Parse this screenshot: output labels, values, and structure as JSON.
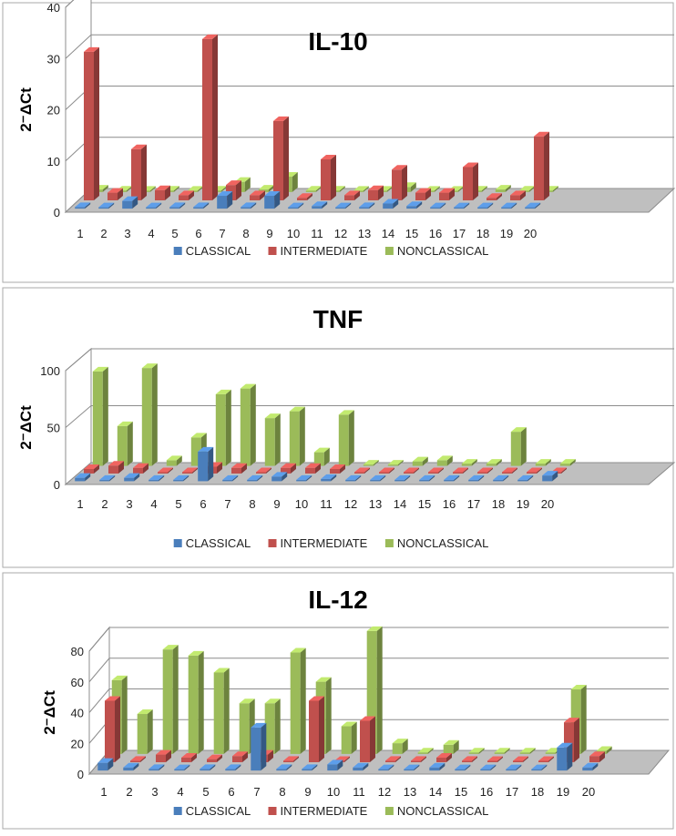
{
  "chart_data": [
    {
      "type": "bar",
      "title": "IL-10",
      "ylabel": "2⁻ΔCt",
      "categories": [
        "1",
        "2",
        "3",
        "4",
        "5",
        "6",
        "7",
        "8",
        "9",
        "10",
        "11",
        "12",
        "13",
        "14",
        "15",
        "16",
        "17",
        "18",
        "19",
        "20"
      ],
      "ylim": [
        0,
        40
      ],
      "yticks": [
        0,
        10,
        20,
        30,
        40
      ],
      "grid": true,
      "legend": "bottom",
      "series": [
        {
          "name": "CLASSICAL",
          "color": "#4A7EBB",
          "values": [
            0.3,
            0.2,
            1.5,
            0.2,
            0.3,
            0.3,
            2.5,
            0.3,
            2.5,
            0.2,
            0.5,
            0.2,
            0.3,
            1.0,
            0.5,
            0.2,
            0.1,
            0.2,
            0.1,
            0.1
          ]
        },
        {
          "name": "INTERMEDIATE",
          "color": "#C0504D",
          "values": [
            29,
            1.5,
            10,
            2,
            1,
            31.5,
            3,
            1,
            15.5,
            0.5,
            8,
            1,
            2,
            6,
            1.5,
            1.5,
            6.5,
            0.5,
            1,
            12.5
          ]
        },
        {
          "name": "NONCLASSICAL",
          "color": "#9BBB59",
          "values": [
            0.5,
            0.3,
            0.2,
            0.3,
            0.2,
            0.3,
            2,
            0.5,
            3,
            0.3,
            0.3,
            0.2,
            0.2,
            1,
            0.2,
            0.2,
            0.3,
            0.5,
            0.3,
            0.3
          ]
        }
      ]
    },
    {
      "type": "bar",
      "title": "TNF",
      "ylabel": "2⁻ΔCt",
      "categories": [
        "1",
        "2",
        "3",
        "4",
        "5",
        "6",
        "7",
        "8",
        "9",
        "10",
        "11",
        "12",
        "13",
        "14",
        "15",
        "16",
        "17",
        "18",
        "19",
        "20"
      ],
      "ylim": [
        0,
        100
      ],
      "yticks": [
        0,
        50,
        100
      ],
      "grid": true,
      "legend": "bottom",
      "series": [
        {
          "name": "CLASSICAL",
          "color": "#4A7EBB",
          "values": [
            3,
            1,
            3,
            0.5,
            1,
            26,
            1,
            1,
            4,
            1,
            2,
            0.5,
            0.3,
            0.3,
            0.3,
            0.3,
            0.3,
            0.3,
            0.5,
            5
          ]
        },
        {
          "name": "INTERMEDIATE",
          "color": "#C0504D",
          "values": [
            4,
            7,
            5,
            1,
            1,
            6,
            5,
            1,
            5,
            5,
            4,
            0.5,
            0.3,
            0.3,
            0.3,
            0.3,
            0.3,
            0.3,
            0.5,
            0.5
          ]
        },
        {
          "name": "NONCLASSICAL",
          "color": "#9BBB59",
          "values": [
            83,
            35,
            86,
            5,
            25,
            63,
            68,
            42,
            48,
            12,
            45,
            0.3,
            0.5,
            4,
            5,
            2,
            2,
            30,
            2,
            2
          ]
        }
      ]
    },
    {
      "type": "bar",
      "title": "IL-12",
      "ylabel": "2⁻ΔCt",
      "categories": [
        "1",
        "2",
        "3",
        "4",
        "5",
        "6",
        "7",
        "8",
        "9",
        "10",
        "11",
        "12",
        "13",
        "14",
        "15",
        "16",
        "17",
        "18",
        "19",
        "20"
      ],
      "ylim": [
        0,
        80
      ],
      "yticks": [
        0,
        20,
        40,
        60,
        80
      ],
      "grid": true,
      "legend": "bottom",
      "series": [
        {
          "name": "CLASSICAL",
          "color": "#4A7EBB",
          "values": [
            5,
            2,
            1,
            0.5,
            1,
            1,
            28,
            1,
            1,
            4,
            2,
            0.5,
            0.5,
            2,
            0.5,
            0.3,
            0.3,
            0.3,
            15,
            2
          ]
        },
        {
          "name": "INTERMEDIATE",
          "color": "#C0504D",
          "values": [
            40,
            1,
            5,
            3,
            2,
            4,
            5,
            1,
            40,
            0.5,
            27,
            1,
            1,
            3,
            1,
            0.5,
            0.5,
            0.5,
            26,
            4
          ]
        },
        {
          "name": "NONCLASSICAL",
          "color": "#9BBB59",
          "values": [
            48,
            26,
            68,
            64,
            53,
            33,
            33,
            66,
            47,
            18,
            80,
            7,
            1,
            6,
            1,
            1,
            1,
            1,
            42,
            2
          ]
        }
      ]
    }
  ]
}
